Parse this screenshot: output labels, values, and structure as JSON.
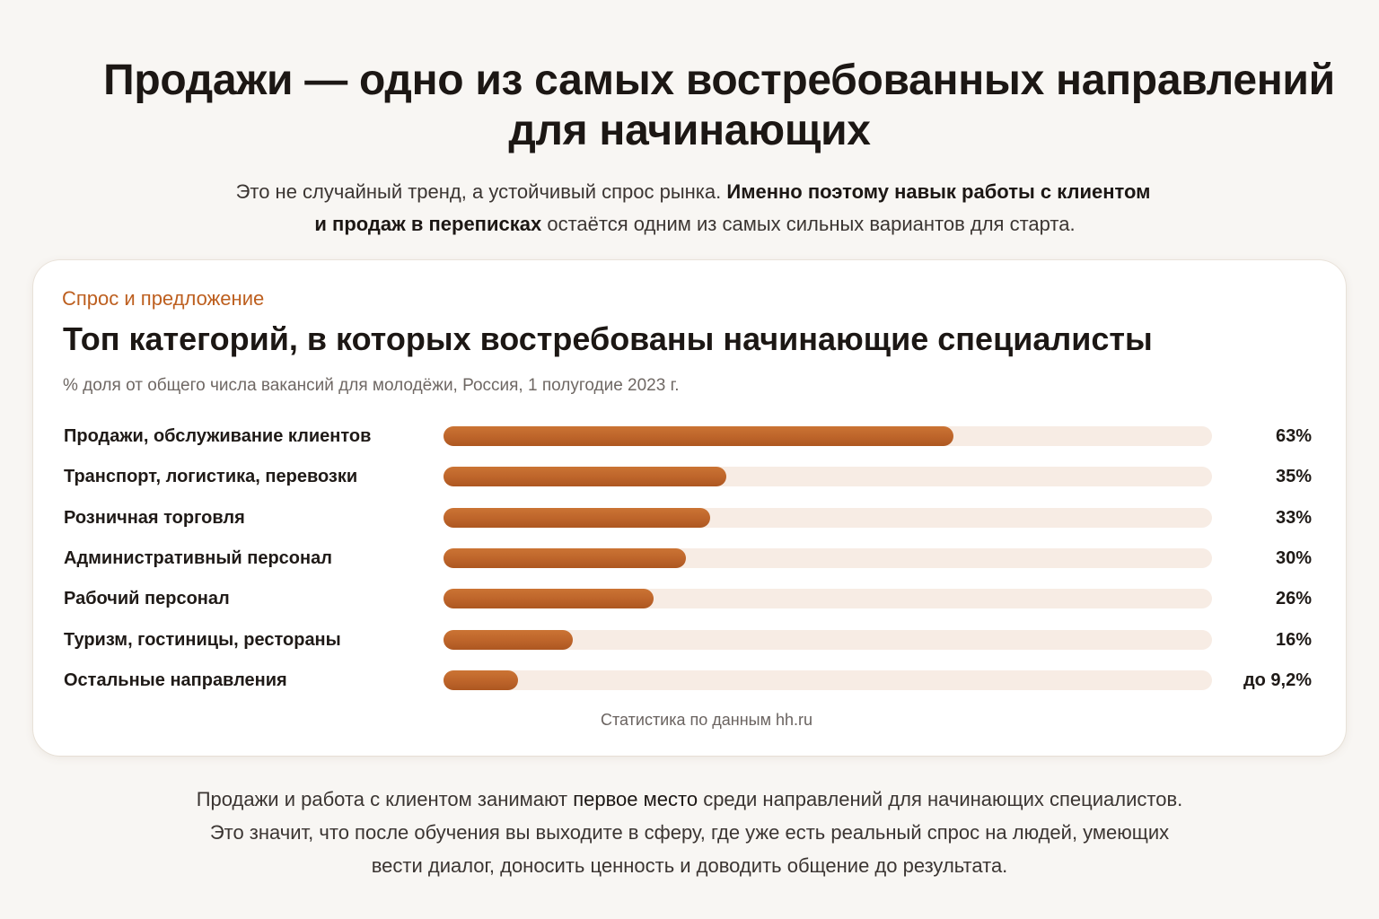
{
  "header": {
    "title_line1": "Продажи — одно из самых востребованных направлений",
    "title_line2": "для начинающих",
    "intro_plain1": "Это не случайный тренд, а устойчивый спрос рынка. ",
    "intro_bold1": "Именно поэтому навык работы с клиентом",
    "intro_bold2": "и продаж в переписках",
    "intro_plain2": " остаётся одним из самых сильных вариантов для старта."
  },
  "card": {
    "eyebrow": "Спрос и предложение",
    "title": "Топ категорий, в которых востребованы начинающие специалисты",
    "subtitle": "% доля от общего числа вакансий для молодёжи, Россия, 1 полугодие 2023 г.",
    "source": "Статистика по данным hh.ru"
  },
  "chart_data": {
    "type": "bar",
    "orientation": "horizontal",
    "title": "Топ категорий, в которых востребованы начинающие специалисты",
    "subtitle": "% доля от общего числа вакансий для молодёжи, Россия, 1 полугодие 2023 г.",
    "xlim": [
      0,
      95
    ],
    "grid": false,
    "categories": [
      "Продажи, обслуживание клиентов",
      "Транспорт, логистика, перевозки",
      "Розничная торговля",
      "Административный персонал",
      "Рабочий персонал",
      "Туризм, гостиницы, рестораны",
      "Остальные направления"
    ],
    "values": [
      63,
      35,
      33,
      30,
      26,
      16,
      9.2
    ],
    "value_labels": [
      "63%",
      "35%",
      "33%",
      "30%",
      "26%",
      "16%",
      "до 9,2%"
    ],
    "colors": {
      "bar": "#bd642a",
      "track": "#f7ece4",
      "accent": "#bd5f1f"
    }
  },
  "footer": {
    "line1_a": "Продажи и работа с клиентом занимают ",
    "line1_hl": "первое место",
    "line1_b": " среди направлений для начинающих специалистов.",
    "line2": "Это значит, что после обучения вы выходите в сферу, где уже есть реальный спрос на людей, умеющих",
    "line3": "вести  диалог, доносить  ценность и доводить общение  до результата."
  }
}
